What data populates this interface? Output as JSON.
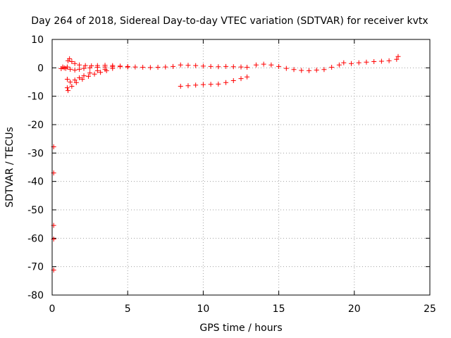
{
  "chart_data": {
    "type": "scatter",
    "title": "Day 264 of 2018, Sidereal Day-to-day VTEC variation (SDTVAR) for receiver kvtx",
    "xlabel": "GPS time / hours",
    "ylabel": "SDTVAR / TECUs",
    "xlim": [
      0,
      25
    ],
    "ylim": [
      -80,
      10
    ],
    "xticks": [
      0,
      5,
      10,
      15,
      20,
      25
    ],
    "yticks": [
      10,
      0,
      -10,
      -20,
      -30,
      -40,
      -50,
      -60,
      -70,
      -80
    ],
    "grid": true,
    "marker_color": "#ff0000",
    "series": [
      {
        "values": [
          [
            0.6,
            -0.3
          ],
          [
            0.8,
            0.0
          ],
          [
            1.0,
            0.3
          ],
          [
            1.05,
            2.5
          ],
          [
            1.15,
            3.2
          ],
          [
            1.3,
            2.2
          ],
          [
            1.5,
            1.5
          ],
          [
            1.8,
            1.0
          ],
          [
            2.2,
            0.8
          ],
          [
            2.6,
            0.7
          ],
          [
            3.0,
            0.8
          ],
          [
            3.5,
            0.9
          ],
          [
            4.0,
            0.8
          ],
          [
            4.5,
            0.6
          ],
          [
            5.0,
            0.5
          ],
          [
            5.5,
            0.3
          ],
          [
            6.0,
            0.2
          ],
          [
            6.5,
            0.1
          ],
          [
            7.0,
            0.2
          ],
          [
            7.5,
            0.3
          ],
          [
            8.0,
            0.5
          ],
          [
            8.5,
            1.0
          ],
          [
            9.0,
            0.9
          ],
          [
            9.5,
            0.8
          ],
          [
            10.0,
            0.6
          ],
          [
            10.5,
            0.5
          ],
          [
            11.0,
            0.4
          ],
          [
            11.5,
            0.5
          ],
          [
            12.0,
            0.4
          ],
          [
            12.5,
            0.3
          ],
          [
            12.9,
            0.2
          ],
          [
            13.5,
            1.0
          ],
          [
            14.0,
            1.3
          ],
          [
            14.5,
            1.0
          ],
          [
            15.0,
            0.5
          ],
          [
            15.5,
            -0.2
          ],
          [
            16.0,
            -0.6
          ],
          [
            16.5,
            -0.9
          ],
          [
            17.0,
            -1.0
          ],
          [
            17.5,
            -0.8
          ],
          [
            18.0,
            -0.6
          ],
          [
            18.5,
            0.2
          ],
          [
            19.0,
            1.0
          ],
          [
            19.3,
            1.8
          ],
          [
            19.8,
            1.5
          ],
          [
            20.3,
            1.8
          ],
          [
            20.8,
            2.0
          ],
          [
            21.3,
            2.2
          ],
          [
            21.8,
            2.3
          ],
          [
            22.3,
            2.5
          ],
          [
            22.8,
            3.0
          ],
          [
            22.9,
            4.0
          ],
          [
            0.7,
            0.3
          ],
          [
            0.9,
            -0.2
          ],
          [
            1.2,
            -0.5
          ],
          [
            1.5,
            -0.8
          ],
          [
            1.8,
            -0.5
          ],
          [
            2.1,
            -0.2
          ],
          [
            2.5,
            0.0
          ],
          [
            3.0,
            0.2
          ],
          [
            3.5,
            0.3
          ],
          [
            4.0,
            0.4
          ],
          [
            4.5,
            0.4
          ],
          [
            5.0,
            0.3
          ],
          [
            1.0,
            -4.0
          ],
          [
            1.2,
            -5.0
          ],
          [
            1.5,
            -4.3
          ],
          [
            1.8,
            -3.5
          ],
          [
            2.1,
            -2.8
          ],
          [
            2.5,
            -1.8
          ],
          [
            3.0,
            -1.0
          ],
          [
            3.5,
            -0.5
          ],
          [
            4.0,
            -0.2
          ],
          [
            1.0,
            -7.0
          ],
          [
            1.05,
            -8.0
          ],
          [
            1.3,
            -6.5
          ],
          [
            1.6,
            -5.2
          ],
          [
            2.0,
            -4.0
          ],
          [
            2.4,
            -3.0
          ],
          [
            2.8,
            -2.2
          ],
          [
            3.2,
            -1.6
          ],
          [
            3.6,
            -1.0
          ],
          [
            8.5,
            -6.5
          ],
          [
            9.0,
            -6.3
          ],
          [
            9.5,
            -6.1
          ],
          [
            10.0,
            -5.9
          ],
          [
            10.5,
            -5.8
          ],
          [
            11.0,
            -5.7
          ],
          [
            11.5,
            -5.2
          ],
          [
            12.0,
            -4.5
          ],
          [
            12.5,
            -3.8
          ],
          [
            12.9,
            -3.2
          ],
          [
            0.1,
            -27.8
          ],
          [
            0.1,
            -37.0
          ],
          [
            0.1,
            -55.5
          ],
          [
            0.1,
            -60.3
          ],
          [
            0.1,
            -71.2
          ]
        ]
      }
    ]
  }
}
